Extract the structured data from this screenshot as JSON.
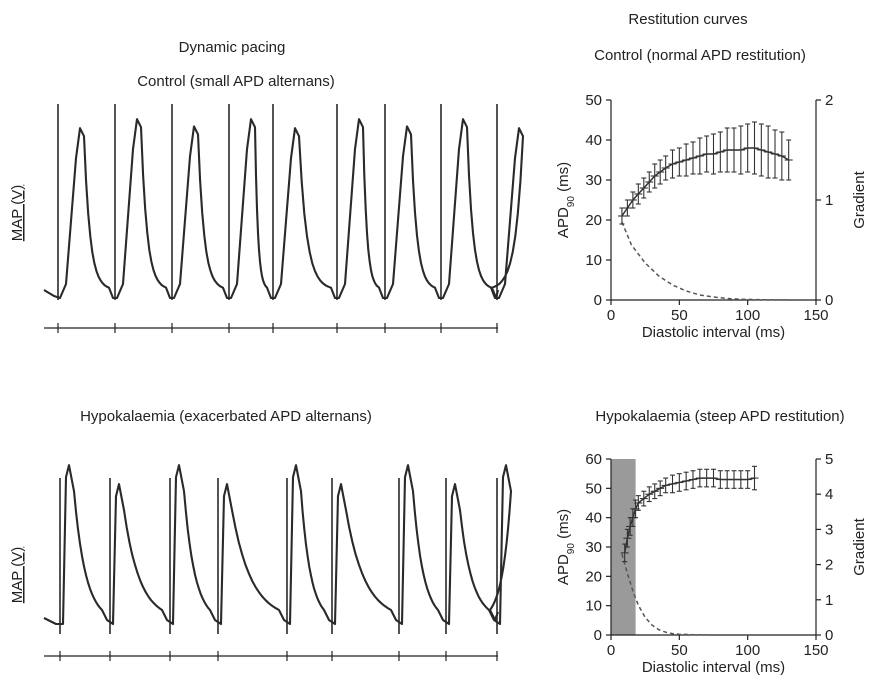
{
  "labels": {
    "dynamic_title": "Dynamic pacing",
    "restitution_title": "Restitution curves",
    "top_left_subtitle": "Control (small APD alternans)",
    "top_right_subtitle": "Control (normal APD restitution)",
    "bottom_left_subtitle": "Hypokalaemia (exacerbated APD alternans)",
    "bottom_right_subtitle": "Hypokalaemia (steep APD restitution)",
    "trace_ylabel": "MAP (V)"
  },
  "chart_data": [
    {
      "type": "line",
      "title": "Control (small APD alternans)",
      "ylabel": "MAP (V)",
      "description": "Monophasic action potential recording under dynamic pacing",
      "beats": 9,
      "peak_amplitude_norm": [
        0.91,
        0.96,
        0.92,
        0.96,
        0.91,
        0.96,
        0.92,
        0.96,
        0.91
      ]
    },
    {
      "type": "scatter",
      "title": "Control (normal APD restitution)",
      "xlabel": "Diastolic interval (ms)",
      "ylabel": "APD90 (ms)",
      "y2label": "Gradient",
      "xlim": [
        0,
        150
      ],
      "ylim": [
        0,
        50
      ],
      "y2lim": [
        0,
        2
      ],
      "xticks": [
        0,
        50,
        100,
        150
      ],
      "yticks": [
        0,
        10,
        20,
        30,
        40,
        50
      ],
      "y2ticks": [
        0,
        1,
        2
      ],
      "series": [
        {
          "kind": "apd",
          "x": [
            8,
            12,
            16,
            20,
            24,
            28,
            32,
            36,
            40,
            45,
            50,
            55,
            60,
            65,
            70,
            75,
            80,
            85,
            90,
            95,
            100,
            105,
            110,
            115,
            120,
            125,
            130
          ],
          "y": [
            21,
            23,
            25,
            26.5,
            28,
            29.5,
            31,
            32,
            33,
            34,
            34.5,
            35,
            35.5,
            36,
            36.5,
            36.5,
            37,
            37.5,
            37.5,
            37.5,
            38,
            38,
            37.5,
            37,
            36.5,
            36,
            35
          ],
          "err": [
            2,
            2,
            2,
            2.5,
            2.5,
            2.5,
            3,
            3,
            3,
            3.5,
            3.5,
            4,
            4,
            4.5,
            4.5,
            5,
            5,
            5.5,
            5.5,
            6,
            6,
            6.5,
            6.5,
            6.5,
            6,
            6,
            5
          ]
        },
        {
          "kind": "gradient",
          "x": [
            8,
            15,
            25,
            35,
            45,
            55,
            65,
            75,
            85,
            95,
            105,
            115,
            130
          ],
          "y": [
            0.78,
            0.55,
            0.37,
            0.24,
            0.15,
            0.09,
            0.05,
            0.03,
            0.015,
            0.008,
            0.004,
            0.002,
            0.001
          ]
        }
      ]
    },
    {
      "type": "line",
      "title": "Hypokalaemia (exacerbated APD alternans)",
      "ylabel": "MAP (V)",
      "description": "Monophasic action potential recording under dynamic pacing",
      "beats": 9,
      "peak_amplitude_norm": [
        0.98,
        0.86,
        0.98,
        0.86,
        0.98,
        0.86,
        0.98,
        0.86,
        0.98
      ]
    },
    {
      "type": "scatter",
      "title": "Hypokalaemia (steep APD restitution)",
      "xlabel": "Diastolic interval (ms)",
      "ylabel": "APD90 (ms)",
      "y2label": "Gradient",
      "xlim": [
        0,
        150
      ],
      "ylim": [
        0,
        60
      ],
      "y2lim": [
        0,
        5
      ],
      "xticks": [
        0,
        50,
        100,
        150
      ],
      "yticks": [
        0,
        10,
        20,
        30,
        40,
        50,
        60
      ],
      "y2ticks": [
        0,
        1,
        2,
        3,
        4,
        5
      ],
      "shaded_region_x": [
        0,
        18
      ],
      "series": [
        {
          "kind": "apd",
          "x": [
            10,
            12,
            14,
            16,
            18,
            20,
            24,
            28,
            32,
            36,
            40,
            45,
            50,
            55,
            60,
            65,
            70,
            75,
            80,
            85,
            90,
            95,
            100,
            105
          ],
          "y": [
            28,
            33,
            37,
            40,
            43,
            45,
            46.5,
            48,
            49,
            50,
            51,
            51.5,
            52,
            52.5,
            53,
            53.5,
            53.5,
            53.5,
            53,
            53,
            53,
            53,
            53,
            53.5
          ],
          "err": [
            3,
            3,
            3,
            3,
            3,
            2.5,
            2.5,
            2.5,
            2.5,
            2.5,
            2.5,
            3,
            3,
            3,
            3,
            3,
            3,
            3,
            3,
            3,
            3,
            3,
            3,
            4
          ]
        },
        {
          "kind": "gradient",
          "x": [
            8,
            12,
            16,
            20,
            25,
            30,
            35,
            40,
            45,
            50,
            60,
            70,
            80,
            100
          ],
          "y": [
            2.3,
            1.75,
            1.25,
            0.85,
            0.5,
            0.28,
            0.15,
            0.08,
            0.04,
            0.02,
            0.008,
            0.003,
            0.001,
            0.0
          ]
        }
      ]
    }
  ]
}
